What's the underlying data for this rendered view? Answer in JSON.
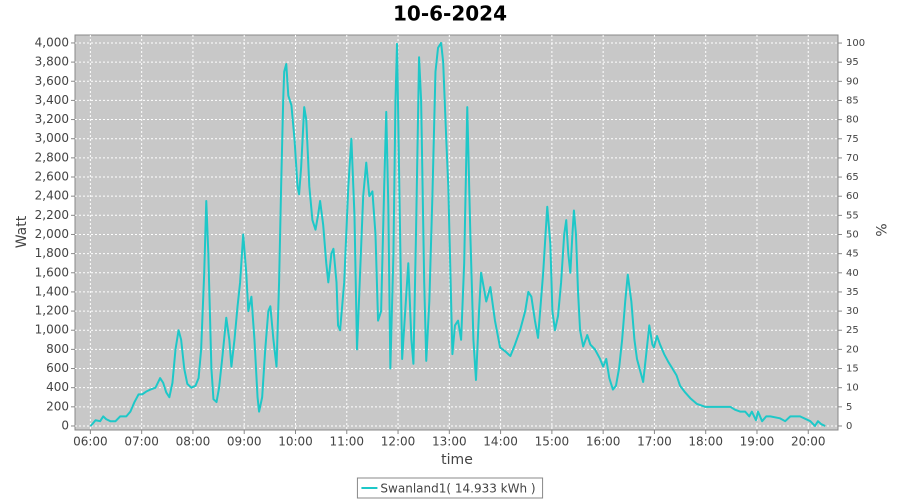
{
  "chart_data": {
    "type": "line",
    "title": "10-6-2024",
    "x_label": "time",
    "y_label": "Watt",
    "y2_label": "%",
    "grid": true,
    "legend": "bottom",
    "plot_background": "#c8c8c8",
    "xlim": [
      5.7,
      20.58
    ],
    "xticks": [
      {
        "value": 6,
        "label": "06:00"
      },
      {
        "value": 7,
        "label": "07:00"
      },
      {
        "value": 8,
        "label": "08:00"
      },
      {
        "value": 9,
        "label": "09:00"
      },
      {
        "value": 10,
        "label": "10:00"
      },
      {
        "value": 11,
        "label": "11:00"
      },
      {
        "value": 12,
        "label": "12:00"
      },
      {
        "value": 13,
        "label": "13:00"
      },
      {
        "value": 14,
        "label": "14:00"
      },
      {
        "value": 15,
        "label": "15:00"
      },
      {
        "value": 16,
        "label": "16:00"
      },
      {
        "value": 17,
        "label": "17:00"
      },
      {
        "value": 18,
        "label": "18:00"
      },
      {
        "value": 19,
        "label": "19:00"
      },
      {
        "value": 20,
        "label": "20:00"
      }
    ],
    "ylim": [
      -42,
      4083
    ],
    "yticks": [
      0,
      200,
      400,
      600,
      800,
      {
        "value": 1000,
        "label": "1,000"
      },
      {
        "value": 1200,
        "label": "1,200"
      },
      {
        "value": 1400,
        "label": "1,400"
      },
      {
        "value": 1600,
        "label": "1,600"
      },
      {
        "value": 1800,
        "label": "1,800"
      },
      {
        "value": 2000,
        "label": "2,000"
      },
      {
        "value": 2200,
        "label": "2,200"
      },
      {
        "value": 2400,
        "label": "2,400"
      },
      {
        "value": 2600,
        "label": "2,600"
      },
      {
        "value": 2800,
        "label": "2,800"
      },
      {
        "value": 3000,
        "label": "3,000"
      },
      {
        "value": 3200,
        "label": "3,200"
      },
      {
        "value": 3400,
        "label": "3,400"
      },
      {
        "value": 3600,
        "label": "3,600"
      },
      {
        "value": 3800,
        "label": "3,800"
      },
      {
        "value": 4000,
        "label": "4,000"
      }
    ],
    "y2lim": [
      -1.05,
      102.1
    ],
    "y2ticks": [
      0,
      5,
      10,
      15,
      20,
      25,
      30,
      35,
      40,
      45,
      50,
      55,
      60,
      65,
      70,
      75,
      80,
      85,
      90,
      95,
      100
    ],
    "x": [
      6.0,
      6.04,
      6.1,
      6.19,
      6.25,
      6.31,
      6.39,
      6.49,
      6.58,
      6.7,
      6.78,
      6.86,
      6.94,
      7.01,
      7.09,
      7.17,
      7.27,
      7.36,
      7.42,
      7.48,
      7.54,
      7.6,
      7.66,
      7.72,
      7.77,
      7.83,
      7.89,
      7.97,
      8.05,
      8.11,
      8.16,
      8.22,
      8.26,
      8.3,
      8.36,
      8.4,
      8.46,
      8.51,
      8.57,
      8.65,
      8.71,
      8.75,
      8.81,
      8.87,
      8.92,
      8.98,
      9.04,
      9.08,
      9.14,
      9.2,
      9.26,
      9.29,
      9.35,
      9.41,
      9.47,
      9.51,
      9.57,
      9.63,
      9.68,
      9.72,
      9.76,
      9.78,
      9.82,
      9.86,
      9.92,
      9.98,
      10.04,
      10.07,
      10.11,
      10.17,
      10.21,
      10.27,
      10.33,
      10.39,
      10.44,
      10.48,
      10.54,
      10.6,
      10.64,
      10.7,
      10.74,
      10.8,
      10.83,
      10.87,
      10.95,
      11.03,
      11.09,
      11.15,
      11.2,
      11.26,
      11.32,
      11.38,
      11.44,
      11.5,
      11.56,
      11.61,
      11.67,
      11.73,
      11.77,
      11.81,
      11.85,
      11.91,
      11.95,
      11.98,
      12.04,
      12.08,
      12.14,
      12.2,
      12.26,
      12.3,
      12.35,
      12.41,
      12.45,
      12.51,
      12.55,
      12.61,
      12.67,
      12.73,
      12.78,
      12.84,
      12.88,
      12.94,
      12.98,
      13.06,
      13.11,
      13.17,
      13.23,
      13.29,
      13.35,
      13.41,
      13.47,
      13.52,
      13.58,
      13.62,
      13.72,
      13.8,
      13.89,
      13.99,
      14.09,
      14.19,
      14.28,
      14.38,
      14.48,
      14.54,
      14.6,
      14.67,
      14.73,
      14.83,
      14.91,
      14.97,
      15.01,
      15.06,
      15.12,
      15.18,
      15.24,
      15.28,
      15.32,
      15.36,
      15.4,
      15.43,
      15.47,
      15.51,
      15.55,
      15.61,
      15.69,
      15.75,
      15.84,
      15.94,
      16.0,
      16.06,
      16.12,
      16.19,
      16.25,
      16.31,
      16.37,
      16.43,
      16.48,
      16.55,
      16.61,
      16.66,
      16.72,
      16.78,
      16.84,
      16.9,
      16.96,
      16.99,
      17.05,
      17.11,
      17.19,
      17.27,
      17.35,
      17.43,
      17.5,
      17.6,
      17.7,
      17.83,
      17.99,
      18.28,
      18.48,
      18.57,
      18.67,
      18.77,
      18.85,
      18.9,
      18.98,
      19.02,
      19.1,
      19.18,
      19.26,
      19.45,
      19.55,
      19.65,
      19.74,
      19.84,
      20.04,
      20.13,
      20.19,
      20.25,
      20.33
    ],
    "series": [
      {
        "name": "Swanland1( 14.933 kWh )",
        "color": "#1ec8c8",
        "values": [
          0,
          20,
          60,
          50,
          100,
          70,
          50,
          50,
          100,
          100,
          150,
          250,
          330,
          330,
          360,
          380,
          400,
          500,
          450,
          350,
          300,
          450,
          800,
          1000,
          900,
          600,
          440,
          400,
          420,
          500,
          800,
          1600,
          2350,
          1800,
          600,
          280,
          250,
          400,
          700,
          1130,
          900,
          620,
          900,
          1250,
          1500,
          2000,
          1600,
          1200,
          1350,
          900,
          300,
          150,
          300,
          800,
          1200,
          1250,
          900,
          620,
          1500,
          2500,
          3400,
          3700,
          3780,
          3450,
          3350,
          3000,
          2500,
          2420,
          2700,
          3330,
          3200,
          2500,
          2150,
          2050,
          2200,
          2350,
          2100,
          1700,
          1500,
          1800,
          1850,
          1500,
          1050,
          1000,
          1500,
          2500,
          3000,
          2200,
          800,
          1600,
          2400,
          2750,
          2400,
          2450,
          2000,
          1100,
          1200,
          2500,
          3280,
          2300,
          600,
          1800,
          3400,
          3990,
          2000,
          700,
          1200,
          1700,
          900,
          650,
          2000,
          3850,
          3400,
          1500,
          680,
          1300,
          2400,
          3700,
          3950,
          4000,
          3800,
          3000,
          2500,
          750,
          1050,
          1100,
          900,
          1700,
          3330,
          2000,
          900,
          480,
          1200,
          1600,
          1300,
          1450,
          1100,
          820,
          780,
          730,
          850,
          1000,
          1200,
          1400,
          1350,
          1100,
          920,
          1600,
          2290,
          1900,
          1200,
          1000,
          1150,
          1500,
          2000,
          2150,
          1800,
          1600,
          2000,
          2250,
          2000,
          1400,
          1000,
          830,
          950,
          850,
          800,
          700,
          620,
          700,
          500,
          380,
          420,
          600,
          900,
          1300,
          1580,
          1300,
          900,
          700,
          580,
          460,
          750,
          1050,
          850,
          820,
          940,
          850,
          750,
          670,
          600,
          530,
          420,
          350,
          290,
          230,
          200,
          200,
          200,
          170,
          150,
          150,
          100,
          150,
          60,
          150,
          50,
          100,
          100,
          80,
          50,
          100,
          100,
          100,
          50,
          0,
          50,
          20,
          0
        ]
      }
    ]
  }
}
